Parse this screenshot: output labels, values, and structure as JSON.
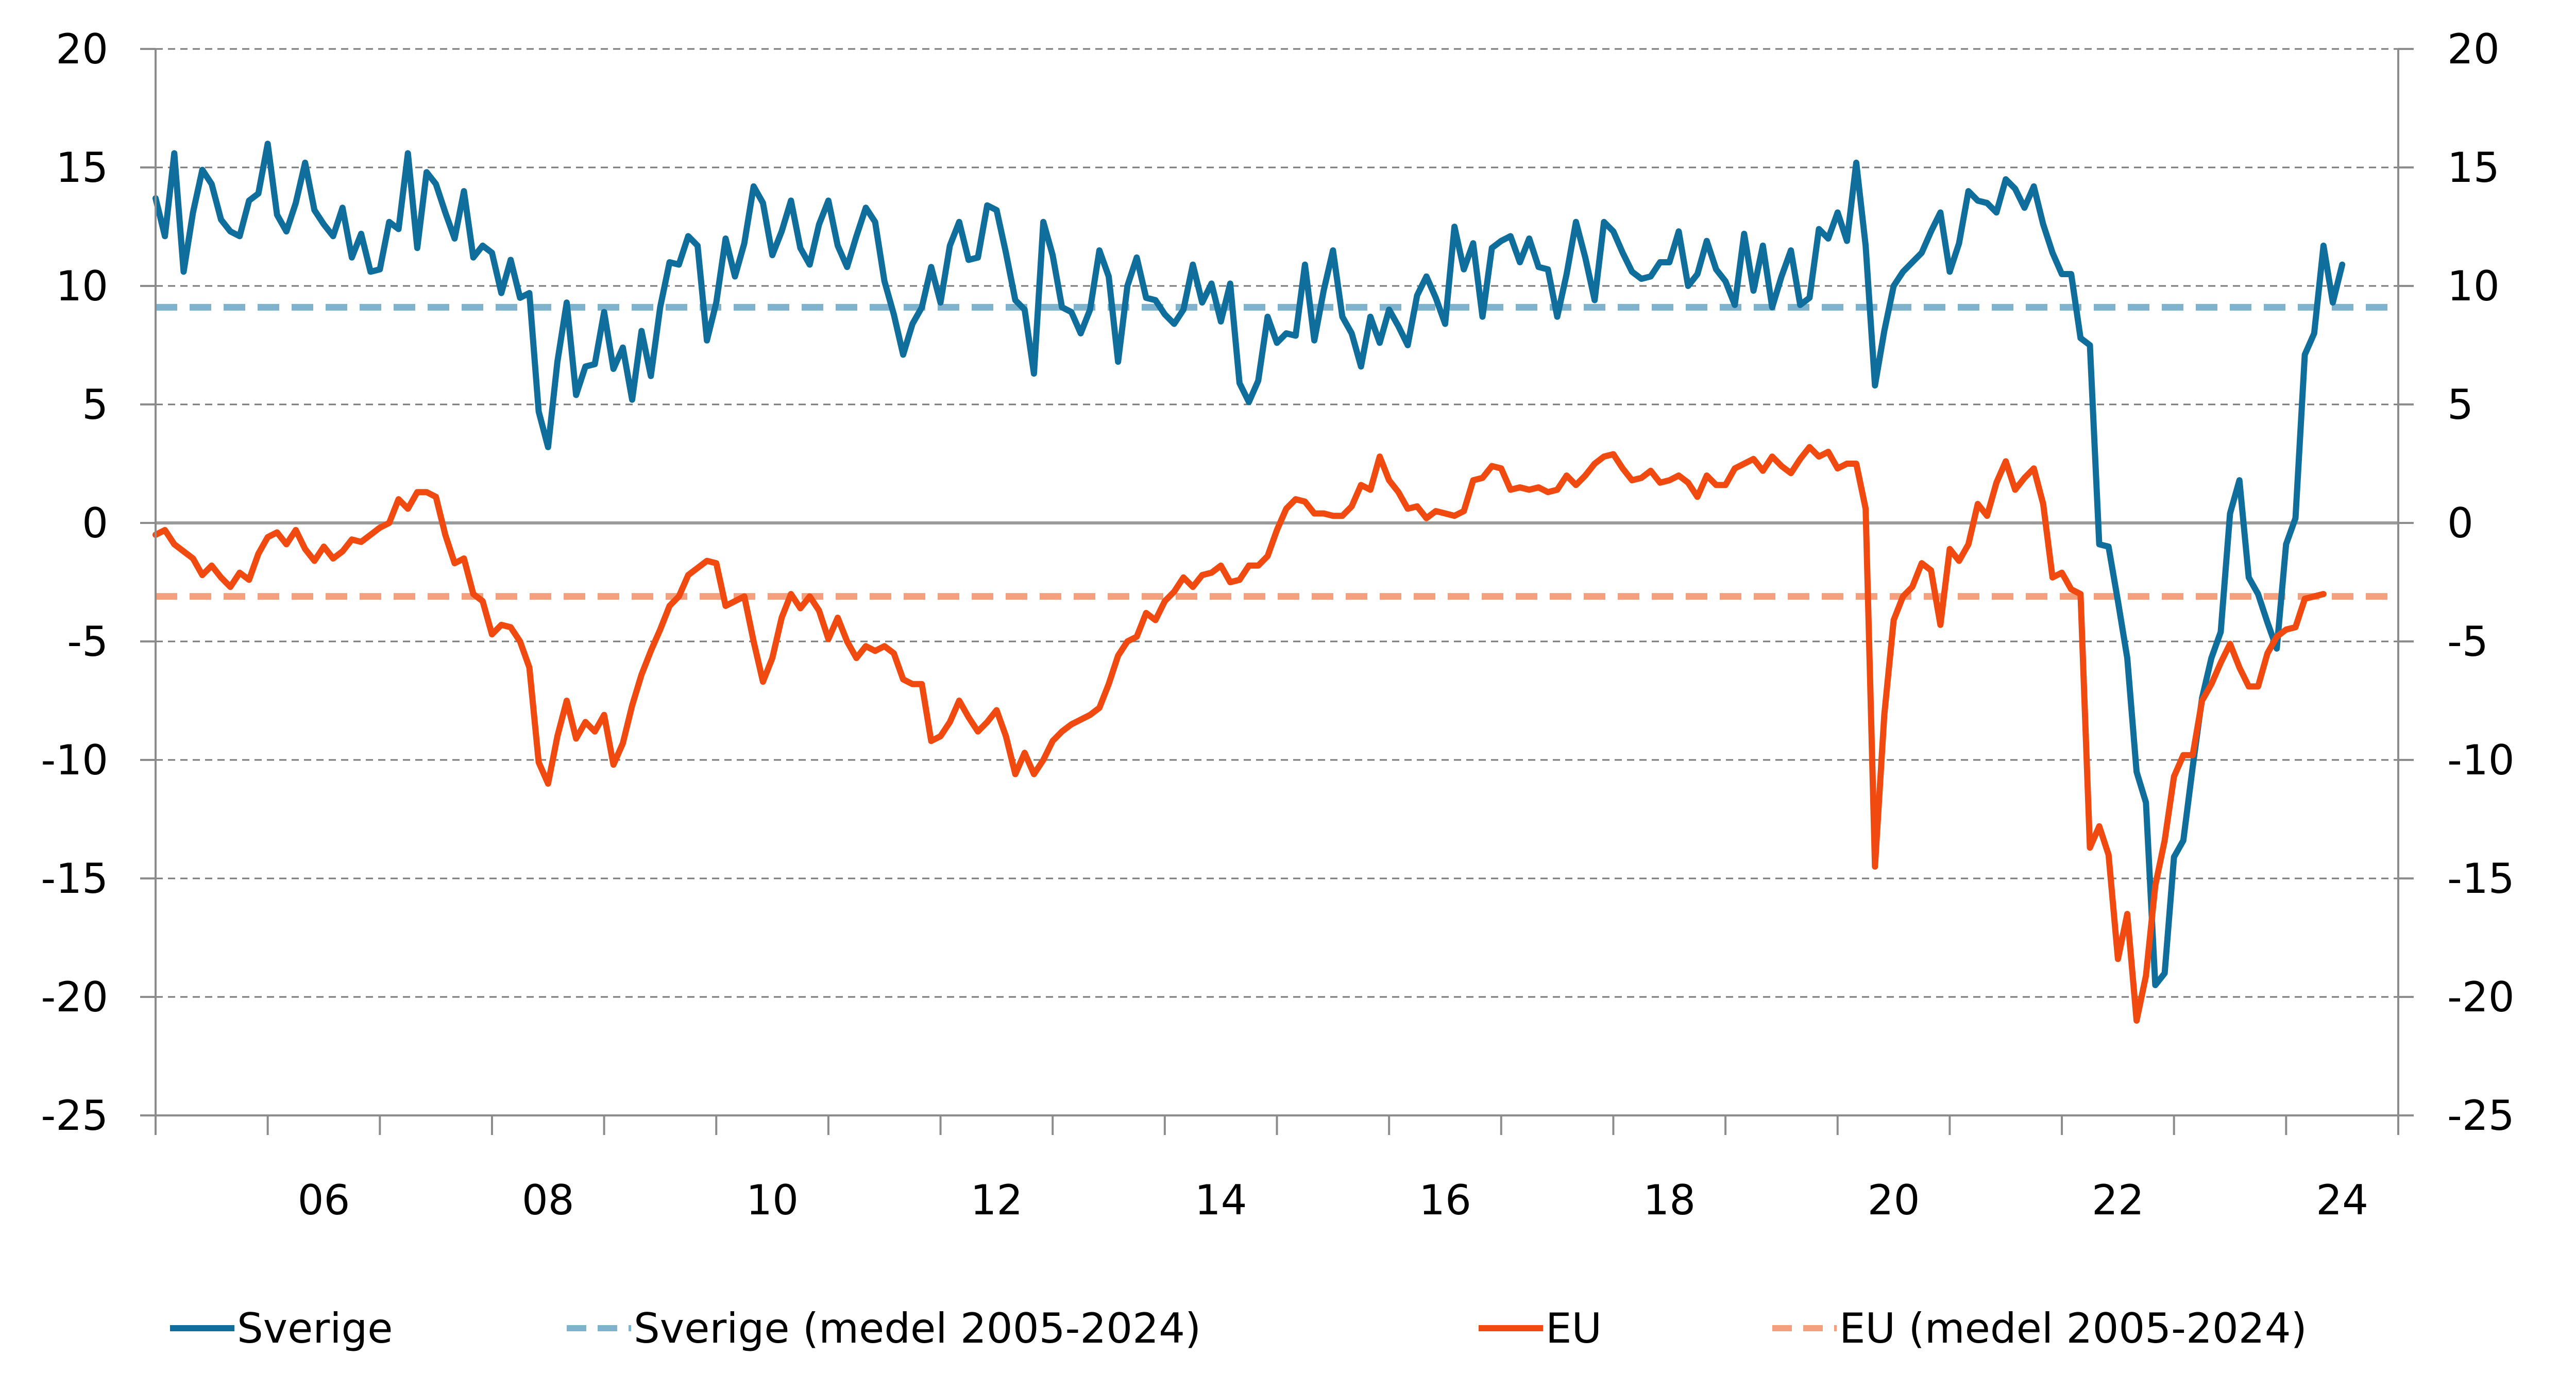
{
  "chart_data": {
    "type": "line",
    "title": "",
    "xlabel": "",
    "ylabel": "",
    "x_start": "2005-01",
    "x_frequency": "monthly",
    "xlim": [
      "2005-01",
      "2025-01"
    ],
    "ylim": [
      -25,
      20
    ],
    "y_ticks": [
      "20",
      "15",
      "10",
      "5",
      "0",
      "-5",
      "-10",
      "-15",
      "-20",
      "-25"
    ],
    "y_ticks_right": [
      "20",
      "15",
      "10",
      "5",
      "0",
      "-5",
      "-10",
      "-15",
      "-20",
      "-25"
    ],
    "x_tick_labels": [
      "06",
      "08",
      "10",
      "12",
      "14",
      "16",
      "18",
      "20",
      "22",
      "24"
    ],
    "grid": "horizontal dashed",
    "legend_position": "bottom",
    "series": [
      {
        "name": "Sverige",
        "style": "solid",
        "color": "#0f6e9b",
        "values": [
          13.7,
          12.1,
          15.6,
          10.6,
          13.1,
          14.9,
          14.3,
          12.8,
          12.3,
          12.1,
          13.6,
          13.9,
          16.0,
          13.0,
          12.3,
          13.5,
          15.2,
          13.2,
          12.6,
          12.1,
          13.3,
          11.2,
          12.2,
          10.6,
          10.7,
          12.7,
          12.4,
          15.6,
          11.6,
          14.8,
          14.3,
          13.1,
          12.0,
          14.0,
          11.2,
          11.7,
          11.4,
          9.7,
          11.1,
          9.5,
          9.7,
          4.7,
          3.2,
          6.8,
          9.3,
          5.4,
          6.6,
          6.7,
          8.9,
          6.5,
          7.4,
          5.2,
          8.1,
          6.2,
          9.1,
          11.0,
          10.9,
          12.1,
          11.7,
          7.7,
          9.3,
          12.0,
          10.4,
          11.8,
          14.2,
          13.5,
          11.3,
          12.3,
          13.6,
          11.6,
          10.9,
          12.6,
          13.6,
          11.7,
          10.8,
          12.1,
          13.3,
          12.7,
          10.2,
          8.8,
          7.1,
          8.4,
          9.1,
          10.8,
          9.3,
          11.7,
          12.7,
          11.1,
          11.2,
          13.4,
          13.2,
          11.4,
          9.4,
          9.0,
          6.3,
          12.7,
          11.3,
          9.1,
          8.9,
          8.0,
          9.0,
          11.5,
          10.4,
          6.8,
          10.0,
          11.2,
          9.5,
          9.4,
          8.8,
          8.4,
          9.0,
          10.9,
          9.3,
          10.1,
          8.5,
          10.1,
          5.9,
          5.1,
          6.0,
          8.7,
          7.6,
          8.0,
          7.9,
          10.9,
          7.7,
          9.8,
          11.5,
          8.7,
          8.0,
          6.6,
          8.7,
          7.6,
          9.0,
          8.3,
          7.5,
          9.6,
          10.4,
          9.5,
          8.4,
          12.5,
          10.7,
          11.8,
          8.7,
          11.6,
          11.9,
          12.1,
          11.0,
          12.0,
          10.8,
          10.7,
          8.7,
          10.5,
          12.7,
          11.2,
          9.4,
          12.7,
          12.3,
          11.4,
          10.6,
          10.3,
          10.4,
          11.0,
          11.0,
          12.3,
          10.0,
          10.5,
          11.9,
          10.7,
          10.2,
          9.2,
          12.2,
          9.8,
          11.7,
          9.1,
          10.4,
          11.5,
          9.2,
          9.5,
          12.4,
          12.0,
          13.1,
          11.9,
          15.2,
          11.7,
          5.8,
          8.1,
          10.0,
          10.6,
          11.0,
          11.4,
          12.3,
          13.1,
          10.6,
          11.8,
          14.0,
          13.6,
          13.5,
          13.1,
          14.5,
          14.1,
          13.3,
          14.2,
          12.6,
          11.4,
          10.5,
          10.5,
          7.8,
          7.5,
          -0.9,
          -1.0,
          -3.3,
          -5.7,
          -10.5,
          -11.8,
          -19.5,
          -19.0,
          -14.1,
          -13.4,
          -10.3,
          -7.4,
          -5.7,
          -4.6,
          0.4,
          1.8,
          -2.3,
          -3.0,
          -4.2,
          -5.3,
          -0.9,
          0.2,
          7.1,
          8.0,
          11.7,
          9.3,
          10.9
        ]
      },
      {
        "name": "Sverige (medel 2005-2024)",
        "style": "dashed",
        "color": "#7fb3cd",
        "constant": 9.1
      },
      {
        "name": "EU",
        "style": "solid",
        "color": "#f04a10",
        "values": [
          -0.5,
          -0.3,
          -0.9,
          -1.2,
          -1.5,
          -2.2,
          -1.8,
          -2.3,
          -2.7,
          -2.1,
          -2.4,
          -1.3,
          -0.6,
          -0.4,
          -0.9,
          -0.3,
          -1.1,
          -1.6,
          -1.0,
          -1.5,
          -1.2,
          -0.7,
          -0.8,
          -0.5,
          -0.2,
          0.0,
          1.0,
          0.6,
          1.3,
          1.3,
          1.1,
          -0.5,
          -1.7,
          -1.5,
          -3.0,
          -3.3,
          -4.7,
          -4.3,
          -4.4,
          -5.0,
          -6.1,
          -10.1,
          -11.0,
          -9.0,
          -7.5,
          -9.1,
          -8.4,
          -8.8,
          -8.1,
          -10.2,
          -9.3,
          -7.7,
          -6.4,
          -5.4,
          -4.5,
          -3.5,
          -3.1,
          -2.2,
          -1.9,
          -1.6,
          -1.7,
          -3.5,
          -3.3,
          -3.1,
          -5.0,
          -6.7,
          -5.7,
          -4.0,
          -3.0,
          -3.6,
          -3.1,
          -3.7,
          -4.9,
          -4.0,
          -5.0,
          -5.7,
          -5.2,
          -5.4,
          -5.2,
          -5.5,
          -6.6,
          -6.8,
          -6.8,
          -9.2,
          -9.0,
          -8.4,
          -7.5,
          -8.2,
          -8.8,
          -8.4,
          -7.9,
          -9.0,
          -10.6,
          -9.7,
          -10.6,
          -10.0,
          -9.2,
          -8.8,
          -8.5,
          -8.3,
          -8.1,
          -7.8,
          -6.8,
          -5.6,
          -5.0,
          -4.8,
          -3.8,
          -4.1,
          -3.3,
          -2.9,
          -2.3,
          -2.7,
          -2.2,
          -2.1,
          -1.8,
          -2.5,
          -2.4,
          -1.8,
          -1.8,
          -1.4,
          -0.3,
          0.6,
          1.0,
          0.9,
          0.4,
          0.4,
          0.3,
          0.3,
          0.7,
          1.6,
          1.4,
          2.8,
          1.8,
          1.3,
          0.6,
          0.7,
          0.2,
          0.5,
          0.4,
          0.3,
          0.5,
          1.8,
          1.9,
          2.4,
          2.3,
          1.4,
          1.5,
          1.4,
          1.5,
          1.3,
          1.4,
          2.0,
          1.6,
          2.0,
          2.5,
          2.8,
          2.9,
          2.3,
          1.8,
          1.9,
          2.2,
          1.7,
          1.8,
          2.0,
          1.7,
          1.1,
          2.0,
          1.6,
          1.6,
          2.3,
          2.5,
          2.7,
          2.2,
          2.8,
          2.4,
          2.1,
          2.7,
          3.2,
          2.8,
          3.0,
          2.3,
          2.5,
          2.5,
          0.6,
          -14.5,
          -8.1,
          -4.1,
          -3.1,
          -2.7,
          -1.7,
          -2.0,
          -4.3,
          -1.1,
          -1.6,
          -0.9,
          0.8,
          0.3,
          1.7,
          2.6,
          1.4,
          1.9,
          2.3,
          0.8,
          -2.3,
          -2.1,
          -2.8,
          -3.0,
          -13.7,
          -12.8,
          -14.0,
          -18.4,
          -16.5,
          -21.0,
          -19.1,
          -15.3,
          -13.4,
          -10.7,
          -9.8,
          -9.8,
          -7.5,
          -6.8,
          -5.9,
          -5.1,
          -6.1,
          -6.9,
          -6.9,
          -5.5,
          -4.8,
          -4.5,
          -4.4,
          -3.2,
          -3.1,
          -3.0
        ]
      },
      {
        "name": "EU (medel 2005-2024)",
        "style": "dashed",
        "color": "#f4a07e",
        "constant": -3.1
      }
    ]
  },
  "colors": {
    "axis": "#8c8c8c",
    "grid": "#7a7a7a",
    "zero_line": "#9a9a9a"
  }
}
